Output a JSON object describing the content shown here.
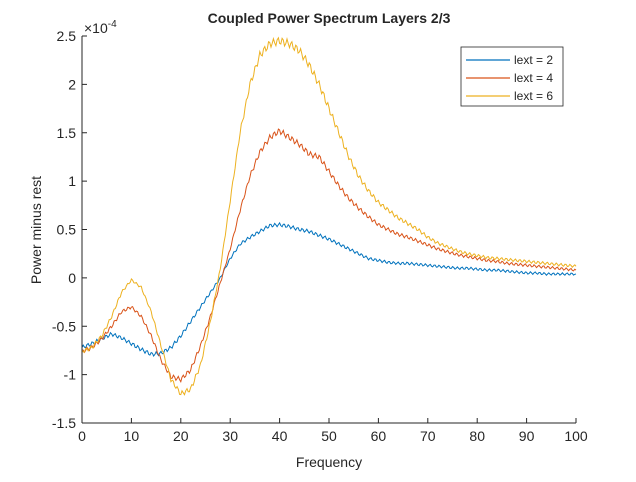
{
  "chart_data": {
    "type": "line",
    "title": "Coupled Power Spectrum Layers 2/3",
    "xlabel": "Frequency",
    "ylabel": "Power minus rest",
    "y_exponent_label": "×10",
    "y_exponent": "-4",
    "xlim": [
      0,
      100
    ],
    "ylim": [
      -1.5,
      2.5
    ],
    "x_ticks": [
      0,
      10,
      20,
      30,
      40,
      50,
      60,
      70,
      80,
      90,
      100
    ],
    "x_tick_labels": [
      "0",
      "10",
      "20",
      "30",
      "40",
      "50",
      "60",
      "70",
      "80",
      "90",
      "100"
    ],
    "y_ticks": [
      -1.5,
      -1,
      -0.5,
      0,
      0.5,
      1,
      1.5,
      2,
      2.5
    ],
    "y_tick_labels": [
      "-1.5",
      "-1",
      "-0.5",
      "0",
      "0.5",
      "1",
      "1.5",
      "2",
      "2.5"
    ],
    "grid": false,
    "legend_position": "top-right",
    "x": [
      0,
      2,
      4,
      6,
      8,
      10,
      12,
      14,
      16,
      18,
      20,
      22,
      24,
      26,
      28,
      30,
      32,
      34,
      36,
      38,
      40,
      42,
      44,
      46,
      48,
      50,
      52,
      54,
      56,
      58,
      60,
      62,
      64,
      66,
      68,
      70,
      72,
      74,
      76,
      78,
      80,
      82,
      84,
      86,
      88,
      90,
      92,
      94,
      96,
      98,
      100
    ],
    "series": [
      {
        "name": "lext = 2",
        "color": "#0072BD",
        "values": [
          -0.72,
          -0.68,
          -0.63,
          -0.58,
          -0.62,
          -0.68,
          -0.74,
          -0.79,
          -0.78,
          -0.72,
          -0.6,
          -0.45,
          -0.3,
          -0.15,
          0.0,
          0.2,
          0.35,
          0.42,
          0.48,
          0.54,
          0.55,
          0.53,
          0.5,
          0.48,
          0.44,
          0.4,
          0.35,
          0.3,
          0.25,
          0.2,
          0.18,
          0.16,
          0.15,
          0.15,
          0.14,
          0.13,
          0.12,
          0.11,
          0.1,
          0.1,
          0.09,
          0.08,
          0.08,
          0.07,
          0.06,
          0.05,
          0.05,
          0.04,
          0.04,
          0.04,
          0.04
        ]
      },
      {
        "name": "lext = 4",
        "color": "#D95319",
        "values": [
          -0.76,
          -0.72,
          -0.63,
          -0.5,
          -0.35,
          -0.3,
          -0.4,
          -0.6,
          -0.85,
          -1.02,
          -1.05,
          -0.95,
          -0.7,
          -0.4,
          -0.05,
          0.3,
          0.7,
          1.05,
          1.3,
          1.45,
          1.52,
          1.45,
          1.38,
          1.28,
          1.25,
          1.1,
          0.95,
          0.82,
          0.72,
          0.63,
          0.55,
          0.5,
          0.45,
          0.42,
          0.38,
          0.34,
          0.3,
          0.27,
          0.24,
          0.22,
          0.2,
          0.18,
          0.17,
          0.15,
          0.14,
          0.13,
          0.12,
          0.11,
          0.1,
          0.09,
          0.08
        ]
      },
      {
        "name": "lext = 6",
        "color": "#EDB120",
        "values": [
          -0.76,
          -0.72,
          -0.6,
          -0.4,
          -0.15,
          -0.02,
          -0.1,
          -0.35,
          -0.7,
          -1.05,
          -1.2,
          -1.15,
          -0.9,
          -0.45,
          0.1,
          0.8,
          1.5,
          2.0,
          2.3,
          2.42,
          2.45,
          2.42,
          2.35,
          2.2,
          2.0,
          1.75,
          1.5,
          1.25,
          1.05,
          0.9,
          0.78,
          0.7,
          0.62,
          0.56,
          0.5,
          0.42,
          0.36,
          0.32,
          0.28,
          0.25,
          0.23,
          0.21,
          0.2,
          0.19,
          0.18,
          0.17,
          0.16,
          0.15,
          0.14,
          0.13,
          0.12
        ]
      }
    ]
  }
}
